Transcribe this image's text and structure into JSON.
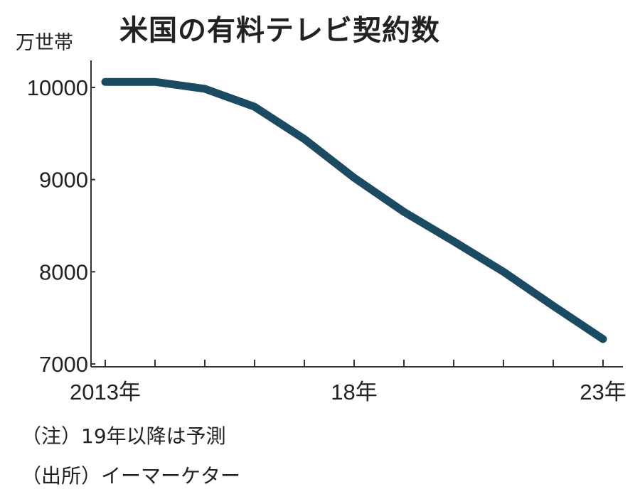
{
  "chart_data": {
    "type": "line",
    "title": "米国の有料テレビ契約数",
    "ylabel": "万世帯",
    "xlabel": "",
    "x": [
      2013,
      2014,
      2015,
      2016,
      2017,
      2018,
      2019,
      2020,
      2021,
      2022,
      2023
    ],
    "values": [
      10060,
      10060,
      9985,
      9790,
      9440,
      9020,
      8650,
      8330,
      8000,
      7630,
      7270
    ],
    "xlim": [
      2013,
      2023
    ],
    "ylim": [
      7000,
      10000
    ],
    "yticks": [
      "10000",
      "9000",
      "8000",
      "7000"
    ],
    "xtick_labels": [
      {
        "x": 2013,
        "label": "2013年"
      },
      {
        "x": 2018,
        "label": "18年"
      },
      {
        "x": 2023,
        "label": "23年"
      }
    ],
    "grid": false,
    "line_color": "#1b4a63"
  },
  "notes": [
    "（注）19年以降は予測",
    "（出所）イーマーケター"
  ]
}
